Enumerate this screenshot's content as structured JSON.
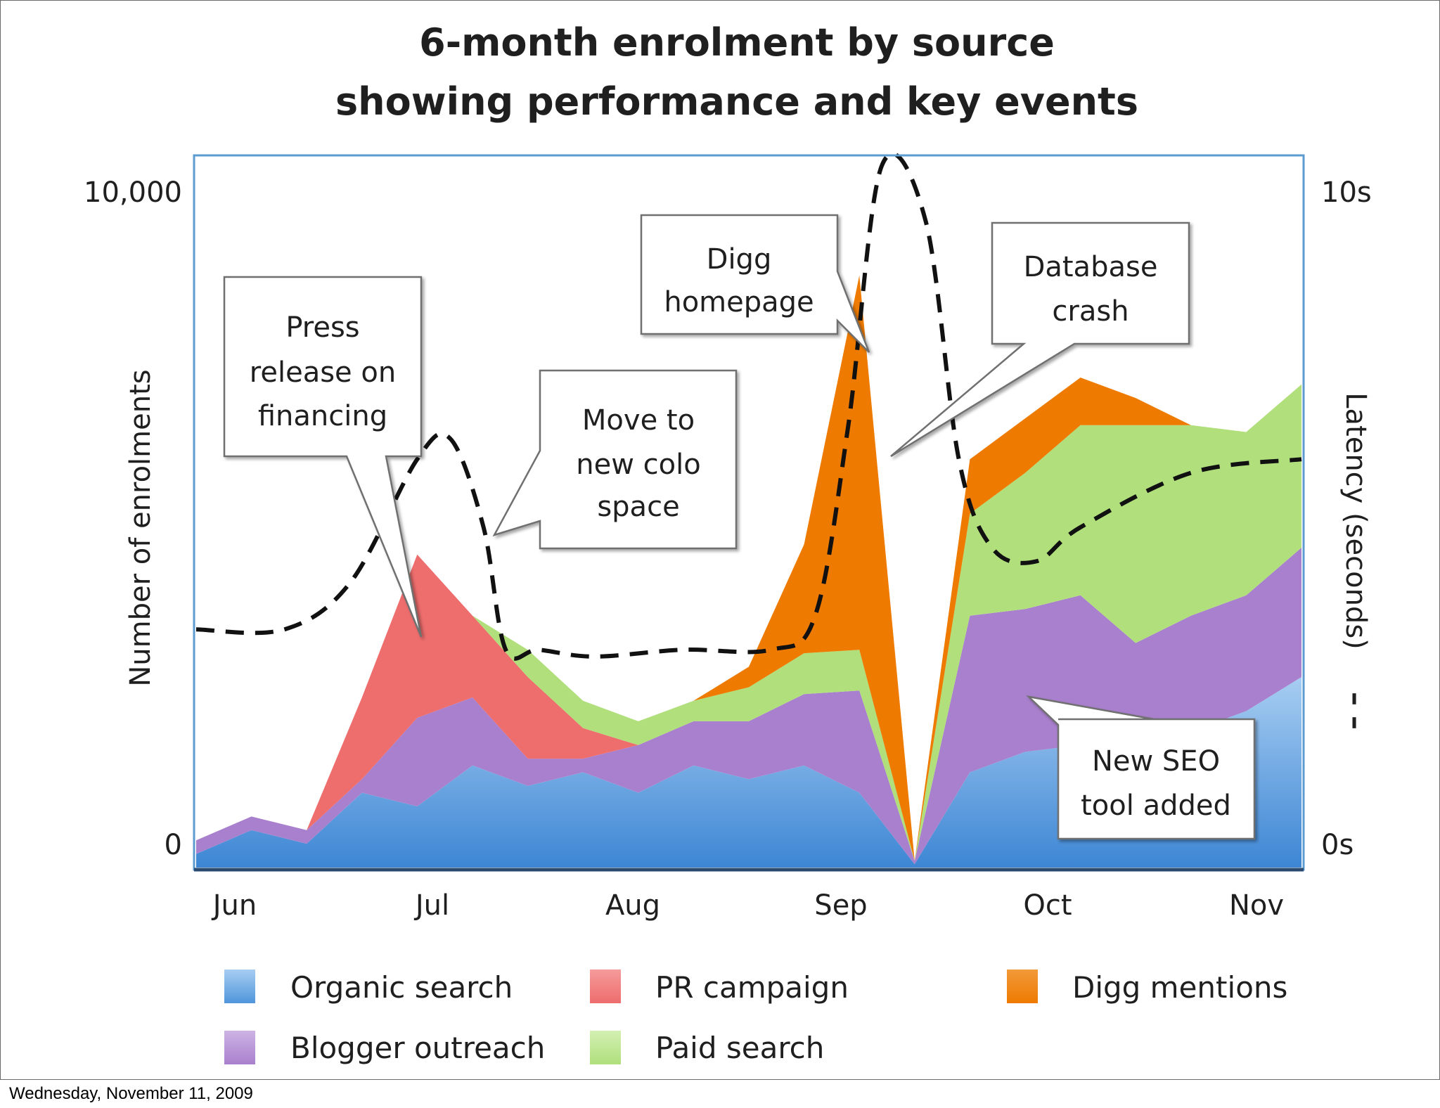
{
  "colors": {
    "organic": "#4f96db",
    "organic_light": "#a7cdf2",
    "blogger": "#a980cd",
    "pr": "#ee6d6d",
    "paid": "#b0df7c",
    "digg": "#ee7b00",
    "frame": "#5d9bd0",
    "text": "#1f1f1f"
  },
  "footer": {
    "date": "Wednesday, November 11, 2009"
  },
  "chart_data": {
    "type": "area",
    "stacked": true,
    "title": [
      "6-month enrolment by source",
      "showing performance and key events"
    ],
    "ylabel": "Number of enrolments",
    "y2label": "Latency (seconds)",
    "ylim": [
      0,
      10000
    ],
    "y2lim": [
      0,
      10
    ],
    "y_ticks": [
      "0",
      "10,000"
    ],
    "y2_ticks": [
      "0s",
      "10s"
    ],
    "categories": [
      "Jun",
      "Jul",
      "Aug",
      "Sep",
      "Oct",
      "Nov"
    ],
    "x": [
      0,
      0.25,
      0.5,
      0.75,
      1,
      1.25,
      1.5,
      1.75,
      2,
      2.25,
      2.5,
      2.75,
      3,
      3.25,
      3.5,
      3.75,
      4,
      4.25,
      4.5,
      4.75,
      5
    ],
    "series": [
      {
        "name": "Organic search",
        "key": "organic",
        "values": [
          200,
          550,
          350,
          1100,
          900,
          1500,
          1200,
          1400,
          1100,
          1500,
          1300,
          1500,
          1100,
          50,
          1400,
          1700,
          1800,
          1700,
          2000,
          2300,
          2800
        ]
      },
      {
        "name": "Blogger outreach",
        "key": "blogger",
        "values": [
          200,
          200,
          200,
          200,
          1300,
          1000,
          400,
          200,
          700,
          650,
          850,
          1050,
          1500,
          50,
          2300,
          2100,
          2200,
          1600,
          1700,
          1700,
          1900
        ]
      },
      {
        "name": "PR campaign",
        "key": "pr",
        "values": [
          0,
          0,
          0,
          1200,
          2400,
          1200,
          1200,
          450,
          0,
          0,
          0,
          0,
          0,
          0,
          0,
          0,
          0,
          0,
          0,
          0,
          0
        ]
      },
      {
        "name": "Paid search",
        "key": "paid",
        "values": [
          0,
          0,
          0,
          0,
          0,
          0,
          400,
          400,
          350,
          300,
          500,
          600,
          600,
          0,
          1500,
          2000,
          2500,
          3200,
          2800,
          2400,
          2400
        ]
      },
      {
        "name": "Digg mentions",
        "key": "digg",
        "values": [
          0,
          0,
          0,
          0,
          0,
          0,
          0,
          0,
          0,
          0,
          300,
          1600,
          5500,
          0,
          800,
          800,
          700,
          400,
          0,
          0,
          0
        ]
      }
    ],
    "latency_seconds": {
      "name": "Latency",
      "x": [
        0,
        0.4,
        0.7,
        1.0,
        1.15,
        1.3,
        1.4,
        1.55,
        1.8,
        2.2,
        2.6,
        2.8,
        2.95,
        3.1,
        3.3,
        3.45,
        3.6,
        3.8,
        4.0,
        4.5,
        5.0
      ],
      "values": [
        3.5,
        3.5,
        4.2,
        6.0,
        6.3,
        5.0,
        3.2,
        3.2,
        3.1,
        3.2,
        3.2,
        3.7,
        6.5,
        10.3,
        9.5,
        6.0,
        4.7,
        4.5,
        5.0,
        5.8,
        6.0
      ]
    },
    "annotations": [
      {
        "key": "press",
        "lines": [
          "Press",
          "release on",
          "financing"
        ]
      },
      {
        "key": "colo",
        "lines": [
          "Move to",
          "new colo",
          "space"
        ]
      },
      {
        "key": "digg",
        "lines": [
          "Digg",
          "homepage"
        ]
      },
      {
        "key": "db",
        "lines": [
          "Database",
          "crash"
        ]
      },
      {
        "key": "seo",
        "lines": [
          "New SEO",
          "tool added"
        ]
      }
    ],
    "legend": {
      "placement": "bottom",
      "latency_marker": "– –",
      "items": [
        {
          "label": "Organic search",
          "key": "organic"
        },
        {
          "label": "PR campaign",
          "key": "pr"
        },
        {
          "label": "Digg mentions",
          "key": "digg"
        },
        {
          "label": "Blogger outreach",
          "key": "blogger"
        },
        {
          "label": "Paid search",
          "key": "paid"
        }
      ]
    }
  }
}
